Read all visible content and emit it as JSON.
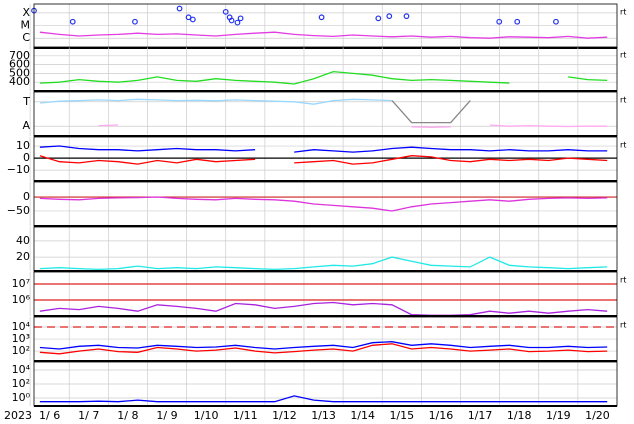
{
  "chart_data": [
    {
      "type": "line",
      "log": true,
      "xlim": [
        6.1,
        21
      ],
      "ylim": [
        1.7e-07,
        0.0005
      ],
      "rt_label": "rt",
      "yticks": [
        {
          "value": 0.0001,
          "label": "X"
        },
        {
          "value": 1e-05,
          "label": "M"
        },
        {
          "value": 1e-06,
          "label": "C"
        }
      ],
      "x": [
        6.25,
        6.75,
        7.25,
        7.75,
        8.25,
        8.75,
        9.25,
        9.75,
        10.25,
        10.75,
        11.25,
        11.75,
        12.25,
        12.75,
        13.25,
        13.75,
        14.25,
        14.75,
        15.25,
        15.75,
        16.25,
        16.75,
        17.25,
        17.75,
        18.25,
        18.75,
        19.25,
        19.75,
        20.25,
        20.75
      ],
      "series": [
        {
          "color": "#e23ce2",
          "values": [
            3e-06,
            2e-06,
            1.5e-06,
            1.8e-06,
            2e-06,
            2.5e-06,
            2e-06,
            2.2e-06,
            1.8e-06,
            1.5e-06,
            2e-06,
            2.5e-06,
            3e-06,
            2e-06,
            1.6e-06,
            1.4e-06,
            1.8e-06,
            1.5e-06,
            1.3e-06,
            1.5e-06,
            1.2e-06,
            1.4e-06,
            1.1e-06,
            1e-06,
            1.3e-06,
            1.2e-06,
            1.1e-06,
            1.4e-06,
            1e-06,
            1.2e-06
          ]
        }
      ],
      "markers": {
        "color": "#2233ee",
        "x": [
          6.1,
          7.09,
          8.68,
          9.82,
          10.05,
          10.16,
          11.0,
          11.1,
          11.15,
          11.3,
          11.38,
          13.45,
          14.9,
          15.18,
          15.62,
          17.99,
          18.45,
          19.44
        ],
        "values": [
          0.00015,
          2e-05,
          2e-05,
          0.00022,
          4.5e-05,
          3e-05,
          0.00012,
          4.5e-05,
          2.5e-05,
          1.7e-05,
          3.7e-05,
          4.5e-05,
          3.7e-05,
          5.5e-05,
          5.5e-05,
          2e-05,
          2e-05,
          2e-05
        ]
      }
    },
    {
      "type": "line",
      "xlim": [
        6.1,
        21
      ],
      "ylim": [
        300,
        800
      ],
      "yticks": [
        400,
        500,
        600,
        700
      ],
      "rt_label": "rt",
      "x": [
        6.25,
        6.75,
        7.25,
        7.75,
        8.25,
        8.75,
        9.25,
        9.75,
        10.25,
        10.75,
        11.25,
        11.75,
        12.25,
        12.75,
        13.25,
        13.75,
        14.25,
        14.75,
        15.25,
        15.75,
        16.25,
        16.75,
        17.25,
        17.75,
        18.25,
        18.75,
        19.25,
        19.75,
        20.25,
        20.75
      ],
      "series": [
        {
          "color": "#22dd22",
          "values": [
            390,
            400,
            430,
            410,
            400,
            420,
            460,
            420,
            410,
            440,
            420,
            410,
            400,
            380,
            440,
            520,
            500,
            480,
            440,
            420,
            430,
            420,
            410,
            400,
            390,
            null,
            null,
            460,
            430,
            420
          ]
        }
      ]
    },
    {
      "type": "line",
      "xlim": [
        6.1,
        21
      ],
      "ylim": [
        0,
        360
      ],
      "rt_label": "rt",
      "yticks": [
        {
          "value": 280,
          "label": "T"
        },
        {
          "value": 80,
          "label": "A"
        }
      ],
      "x": [
        6.25,
        6.75,
        7.25,
        7.75,
        8.25,
        8.75,
        9.25,
        9.75,
        10.25,
        10.75,
        11.25,
        11.75,
        12.25,
        12.75,
        13.25,
        13.75,
        14.25,
        14.75,
        15.25,
        15.75,
        16.25,
        16.75,
        17.25,
        17.75,
        18.25,
        18.75,
        19.25,
        19.75,
        20.25,
        20.75
      ],
      "series": [
        {
          "color": "#99d8ff",
          "values": [
            270,
            285,
            290,
            295,
            290,
            300,
            295,
            290,
            292,
            288,
            295,
            290,
            285,
            280,
            260,
            290,
            300,
            295,
            290,
            null,
            null,
            null,
            300,
            null,
            null,
            null,
            null,
            null,
            null,
            null
          ]
        },
        {
          "color": "#ffaaee",
          "values": [
            null,
            null,
            null,
            85,
            90,
            null,
            null,
            80,
            null,
            null,
            null,
            null,
            null,
            null,
            95,
            null,
            null,
            null,
            null,
            75,
            70,
            75,
            null,
            90,
            80,
            85,
            80,
            78,
            80,
            80
          ]
        },
        {
          "color": "#888888",
          "values": [
            null,
            null,
            null,
            null,
            null,
            null,
            null,
            null,
            null,
            null,
            null,
            null,
            null,
            null,
            null,
            null,
            null,
            null,
            290,
            110,
            110,
            110,
            290,
            null,
            null,
            null,
            null,
            null,
            null,
            null
          ]
        }
      ]
    },
    {
      "type": "line",
      "xlim": [
        6.1,
        21
      ],
      "ylim": [
        -19,
        17.5
      ],
      "rt_label": "rt",
      "reflines": [
        0
      ],
      "refline_color": "#000000",
      "yticks": [
        10,
        0,
        {
          "value": -10,
          "label": "−10"
        }
      ],
      "x": [
        6.25,
        6.75,
        7.25,
        7.75,
        8.25,
        8.75,
        9.25,
        9.75,
        10.25,
        10.75,
        11.25,
        11.75,
        12.25,
        12.75,
        13.25,
        13.75,
        14.25,
        14.75,
        15.25,
        15.75,
        16.25,
        16.75,
        17.25,
        17.75,
        18.25,
        18.75,
        19.25,
        19.75,
        20.25,
        20.75
      ],
      "series": [
        {
          "color": "#0000ff",
          "values": [
            9,
            10,
            8,
            7,
            7,
            6,
            7,
            8,
            7,
            7,
            6,
            7,
            null,
            5,
            7,
            6,
            5,
            6,
            8,
            9,
            8,
            7,
            7,
            6,
            7,
            6,
            6,
            7,
            6,
            6
          ]
        },
        {
          "color": "#ff0000",
          "values": [
            2,
            -3,
            -4,
            -2,
            -3,
            -5,
            -2,
            -4,
            -1,
            -3,
            -2,
            -1,
            null,
            -4,
            -3,
            -2,
            -5,
            -4,
            -1,
            2,
            1,
            -2,
            -3,
            -1,
            -2,
            -1,
            -2,
            0,
            -1,
            -2
          ]
        }
      ]
    },
    {
      "type": "line",
      "xlim": [
        6.1,
        21
      ],
      "ylim": [
        -104,
        54
      ],
      "reflines": [
        0
      ],
      "refline_color": "#cc2222",
      "yticks": [
        0,
        {
          "value": -50,
          "label": "−50"
        }
      ],
      "x": [
        6.25,
        6.75,
        7.25,
        7.75,
        8.25,
        8.75,
        9.25,
        9.75,
        10.25,
        10.75,
        11.25,
        11.75,
        12.25,
        12.75,
        13.25,
        13.75,
        14.25,
        14.75,
        15.25,
        15.75,
        16.25,
        16.75,
        17.25,
        17.75,
        18.25,
        18.75,
        19.25,
        19.75,
        20.25,
        20.75
      ],
      "series": [
        {
          "color": "#dd33dd",
          "values": [
            -5,
            -8,
            -10,
            -5,
            -3,
            -2,
            0,
            -5,
            -8,
            -10,
            -5,
            -8,
            -10,
            -15,
            -25,
            -30,
            -35,
            -40,
            -50,
            -35,
            -25,
            -20,
            -15,
            -10,
            -15,
            -8,
            -5,
            -3,
            -5,
            -3
          ]
        }
      ]
    },
    {
      "type": "line",
      "xlim": [
        6.1,
        21
      ],
      "ylim": [
        3,
        57
      ],
      "yticks": [
        20,
        40
      ],
      "x": [
        6.25,
        6.75,
        7.25,
        7.75,
        8.25,
        8.75,
        9.25,
        9.75,
        10.25,
        10.75,
        11.25,
        11.75,
        12.25,
        12.75,
        13.25,
        13.75,
        14.25,
        14.75,
        15.25,
        15.75,
        16.25,
        16.75,
        17.25,
        17.75,
        18.25,
        18.75,
        19.25,
        19.75,
        20.25,
        20.75
      ],
      "series": [
        {
          "color": "#22e8e8",
          "values": [
            6,
            7,
            6,
            5,
            6,
            9,
            6,
            7,
            6,
            8,
            7,
            6,
            5,
            6,
            8,
            10,
            9,
            12,
            20,
            15,
            10,
            9,
            8,
            20,
            10,
            8,
            7,
            6,
            7,
            8
          ]
        }
      ]
    },
    {
      "type": "line",
      "log": true,
      "xlim": [
        6.1,
        21
      ],
      "ylim": [
        100000.0,
        56000000.0
      ],
      "rt_label": "rt",
      "reflines": [
        10000000.0,
        1000000.0
      ],
      "refline_color": "#dd2222",
      "yticks": [
        {
          "value": 10000000.0,
          "label": "10⁷"
        },
        {
          "value": 1000000.0,
          "label": "10⁶"
        }
      ],
      "x": [
        6.25,
        6.75,
        7.25,
        7.75,
        8.25,
        8.75,
        9.25,
        9.75,
        10.25,
        10.75,
        11.25,
        11.75,
        12.25,
        12.75,
        13.25,
        13.75,
        14.25,
        14.75,
        15.25,
        15.75,
        16.25,
        16.75,
        17.25,
        17.75,
        18.25,
        18.75,
        19.25,
        19.75,
        20.25,
        20.75
      ],
      "series": [
        {
          "color": "#aa22dd",
          "values": [
            200000.0,
            300000.0,
            250000.0,
            400000.0,
            300000.0,
            200000.0,
            500000.0,
            400000.0,
            300000.0,
            200000.0,
            600000.0,
            500000.0,
            300000.0,
            400000.0,
            600000.0,
            700000.0,
            500000.0,
            600000.0,
            500000.0,
            120000.0,
            110000.0,
            110000.0,
            120000.0,
            200000.0,
            150000.0,
            200000.0,
            150000.0,
            200000.0,
            250000.0,
            200000.0
          ]
        }
      ]
    },
    {
      "type": "line",
      "log": true,
      "xlim": [
        6.1,
        21
      ],
      "ylim": [
        15,
        68000.0
      ],
      "rt_label": "rt",
      "reflines": [
        10000.0
      ],
      "refline_color": "#dd2222",
      "refline_dashed": true,
      "yticks": [
        {
          "value": 10000.0,
          "label": "10⁴"
        },
        {
          "value": 1000.0,
          "label": "10³"
        },
        {
          "value": 100.0,
          "label": "10²"
        }
      ],
      "x": [
        6.25,
        6.75,
        7.25,
        7.75,
        8.25,
        8.75,
        9.25,
        9.75,
        10.25,
        10.75,
        11.25,
        11.75,
        12.25,
        12.75,
        13.25,
        13.75,
        14.25,
        14.75,
        15.25,
        15.75,
        16.25,
        16.75,
        17.25,
        17.75,
        18.25,
        18.75,
        19.25,
        19.75,
        20.25,
        20.75
      ],
      "series": [
        {
          "color": "#0000ff",
          "values": [
            200,
            150,
            250,
            300,
            200,
            180,
            300,
            250,
            200,
            220,
            300,
            200,
            150,
            200,
            250,
            300,
            200,
            500,
            600,
            300,
            400,
            300,
            200,
            250,
            300,
            200,
            200,
            250,
            200,
            220
          ]
        },
        {
          "color": "#ff0000",
          "values": [
            80,
            60,
            100,
            150,
            90,
            80,
            200,
            150,
            100,
            120,
            180,
            100,
            70,
            90,
            120,
            150,
            100,
            300,
            400,
            150,
            200,
            150,
            100,
            120,
            150,
            90,
            100,
            120,
            90,
            100
          ]
        }
      ]
    },
    {
      "type": "line",
      "log": true,
      "xlim": [
        6.1,
        21
      ],
      "ylim": [
        0.072,
        140000.0
      ],
      "yticks": [
        {
          "value": 10000.0,
          "label": "10⁴"
        },
        {
          "value": 100,
          "label": "10²"
        },
        {
          "value": 1,
          "label": "10⁰"
        }
      ],
      "year": "2023",
      "xticks": [
        {
          "value": 6.5,
          "label": "1/ 6"
        },
        {
          "value": 7.5,
          "label": "1/ 7"
        },
        {
          "value": 8.5,
          "label": "1/ 8"
        },
        {
          "value": 9.5,
          "label": "1/ 9"
        },
        {
          "value": 10.5,
          "label": "1/10"
        },
        {
          "value": 11.5,
          "label": "1/11"
        },
        {
          "value": 12.5,
          "label": "1/12"
        },
        {
          "value": 13.5,
          "label": "1/13"
        },
        {
          "value": 14.5,
          "label": "1/14"
        },
        {
          "value": 15.5,
          "label": "1/15"
        },
        {
          "value": 16.5,
          "label": "1/16"
        },
        {
          "value": 17.5,
          "label": "1/17"
        },
        {
          "value": 18.5,
          "label": "1/18"
        },
        {
          "value": 19.5,
          "label": "1/19"
        },
        {
          "value": 20.5,
          "label": "1/20"
        }
      ],
      "x": [
        6.25,
        6.75,
        7.25,
        7.75,
        8.25,
        8.75,
        9.25,
        9.75,
        10.25,
        10.75,
        11.25,
        11.75,
        12.25,
        12.75,
        13.25,
        13.75,
        14.25,
        14.75,
        15.25,
        15.75,
        16.25,
        16.75,
        17.25,
        17.75,
        18.25,
        18.75,
        19.25,
        19.75,
        20.25,
        20.75
      ],
      "series": [
        {
          "color": "#0000ff",
          "values": [
            0.3,
            0.3,
            0.3,
            0.35,
            0.3,
            0.5,
            0.3,
            0.3,
            0.3,
            0.3,
            0.3,
            0.3,
            0.3,
            2,
            0.5,
            0.3,
            0.3,
            0.3,
            0.3,
            0.3,
            0.3,
            0.3,
            0.3,
            0.3,
            0.3,
            0.3,
            0.3,
            0.3,
            0.3,
            0.3
          ]
        }
      ]
    }
  ]
}
